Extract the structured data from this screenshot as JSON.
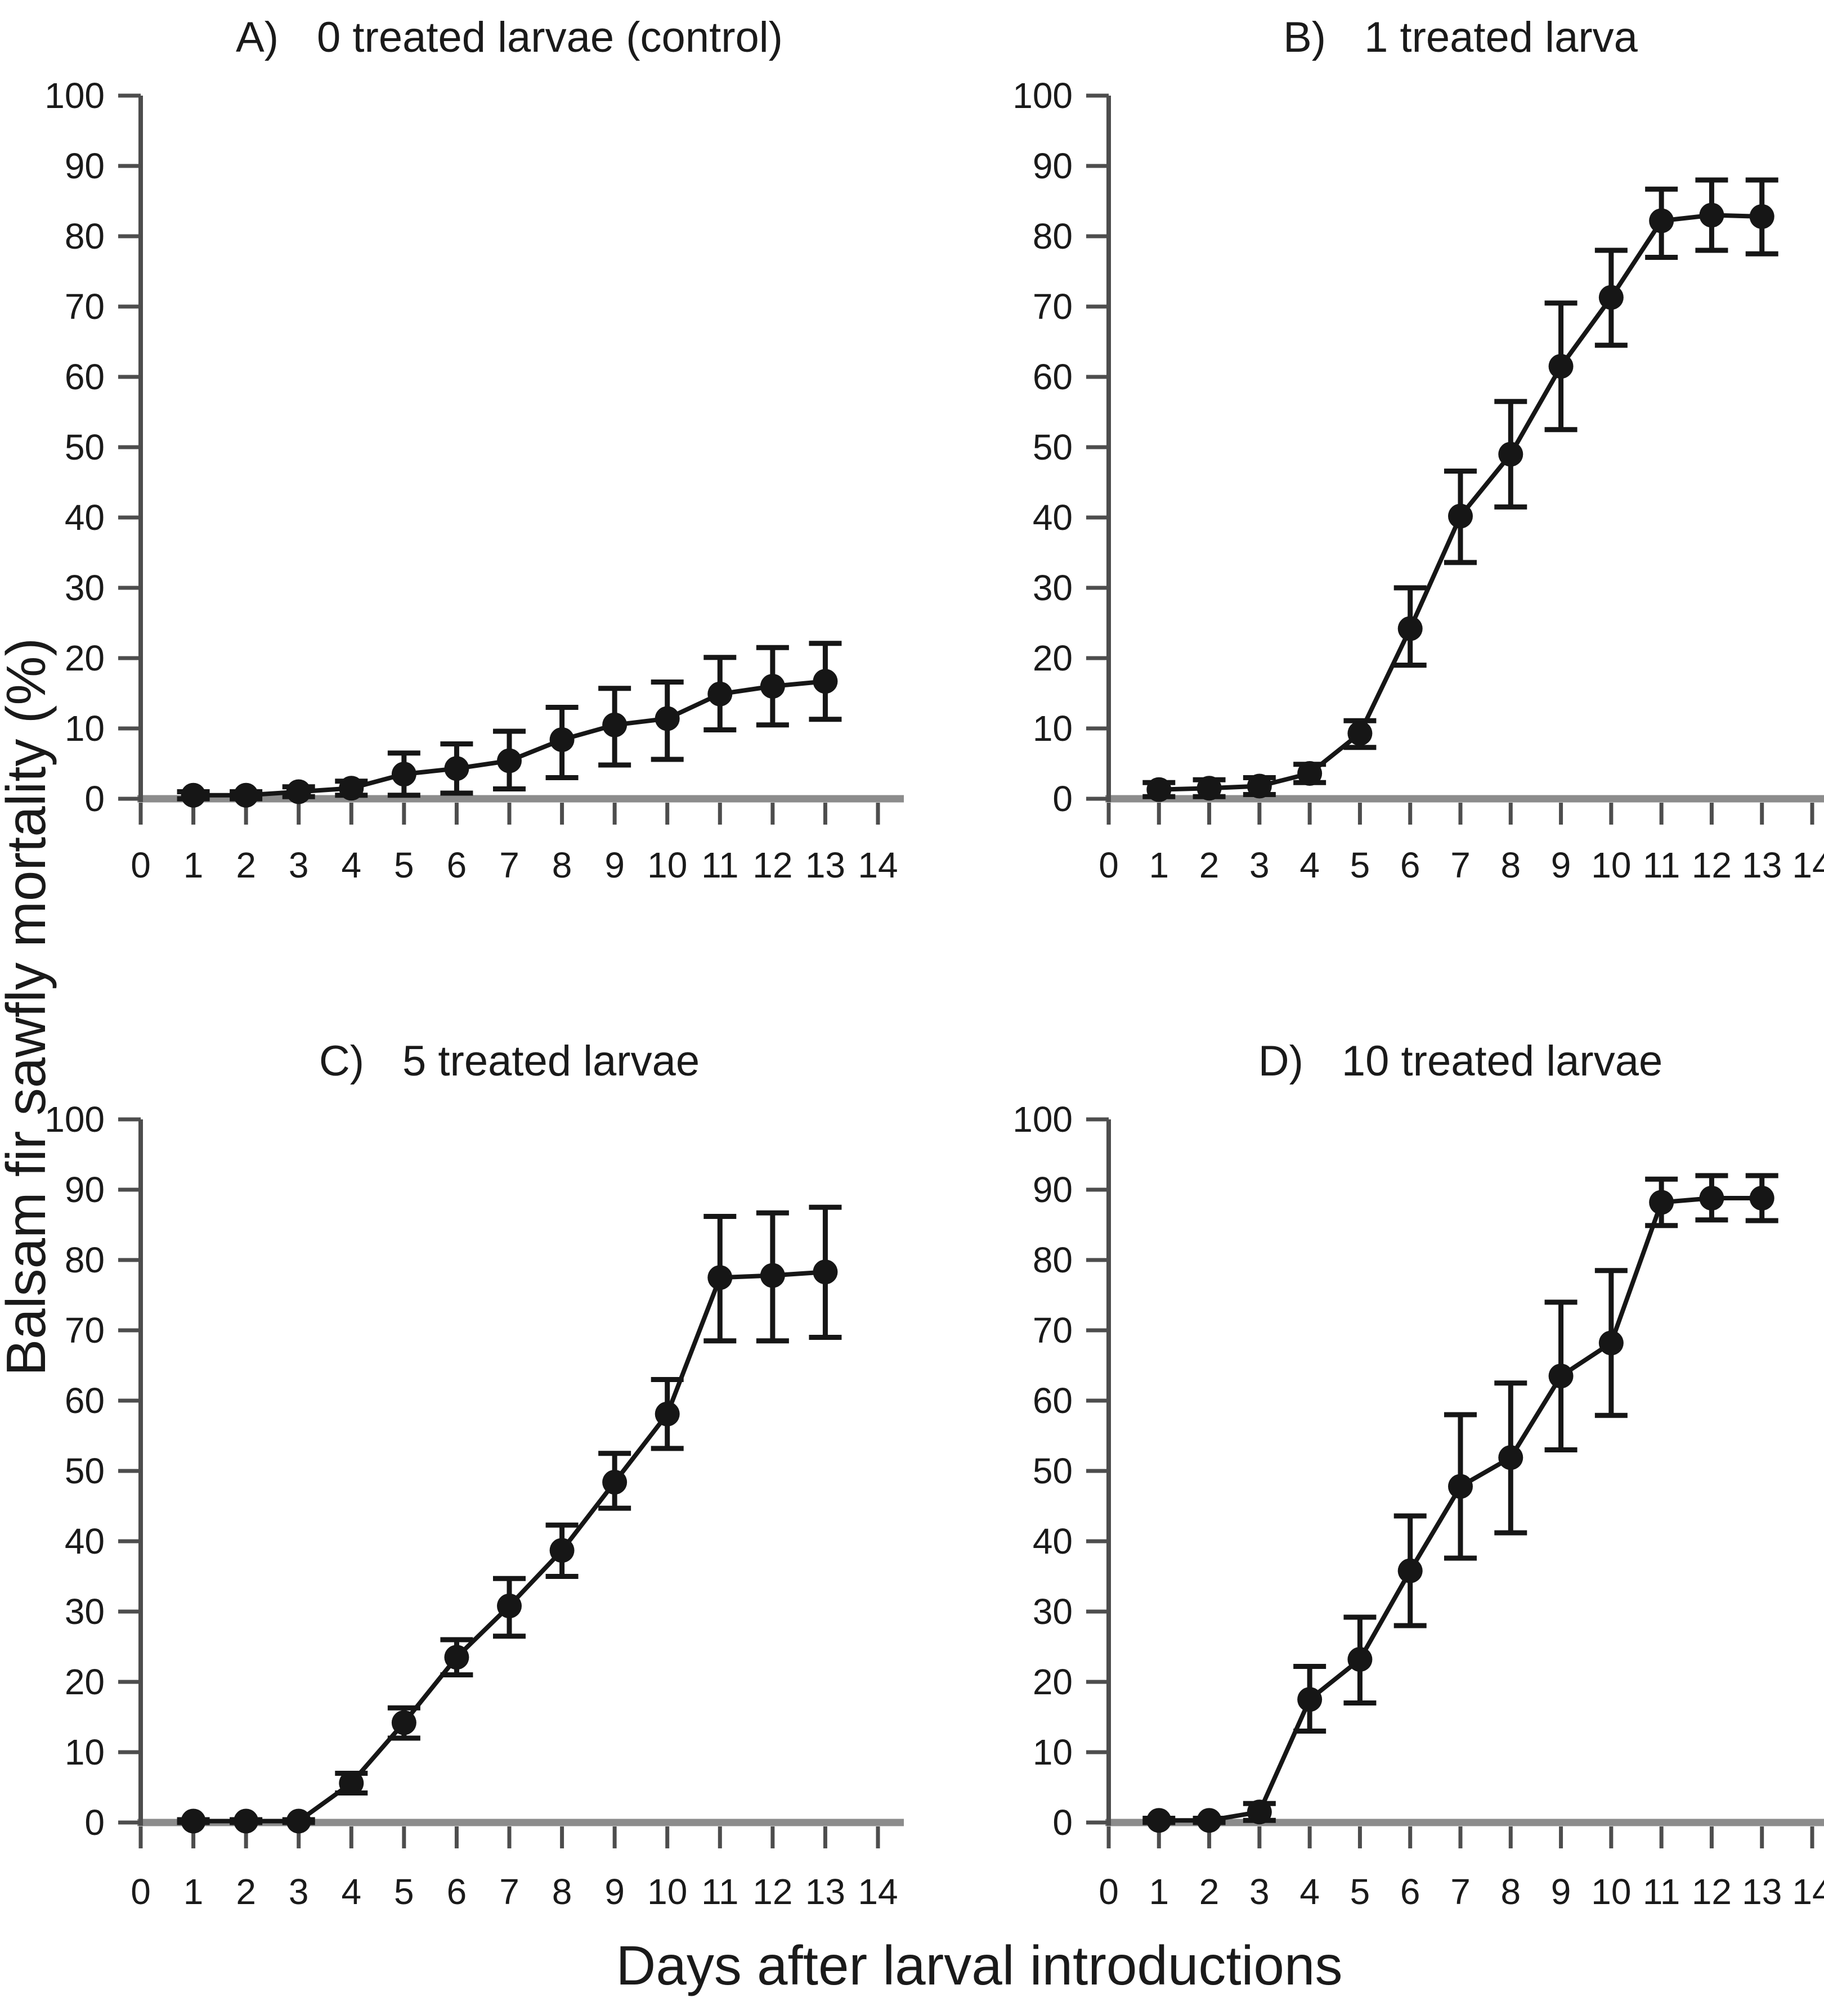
{
  "figure": {
    "xlabel": "Days after larval introductions",
    "ylabel": "Balsam fir sawfly mortality (%)",
    "background_color": "#ffffff",
    "series_color": "#161616",
    "axis_color": "#4d4d4d",
    "baseline_color": "#8c8c8c",
    "text_color": "#1a1a1a",
    "marker": "filled-circle",
    "error_bars": "mean ± error, capped",
    "axes": {
      "xlim": [
        0,
        14
      ],
      "ylim": [
        0,
        100
      ],
      "xticks": [
        0,
        1,
        2,
        3,
        4,
        5,
        6,
        7,
        8,
        9,
        10,
        11,
        12,
        13,
        14
      ],
      "yticks": [
        0,
        10,
        20,
        30,
        40,
        50,
        60,
        70,
        80,
        90,
        100
      ]
    }
  },
  "chart_data": [
    {
      "type": "line",
      "letter": "A)",
      "panel_title": "0 treated larvae (control)",
      "x": [
        1,
        2,
        3,
        4,
        5,
        6,
        7,
        8,
        9,
        10,
        11,
        12,
        13
      ],
      "values": [
        0.5,
        0.5,
        1.0,
        1.5,
        3.5,
        4.3,
        5.4,
        8.4,
        10.5,
        11.4,
        14.9,
        16.0,
        16.7
      ],
      "err_low": [
        0.5,
        0.5,
        0.7,
        1.0,
        3.0,
        3.5,
        4.0,
        5.4,
        5.7,
        5.8,
        5.1,
        5.5,
        5.4
      ],
      "err_high": [
        0.5,
        0.5,
        0.7,
        1.0,
        3.0,
        3.5,
        4.2,
        4.6,
        5.2,
        5.2,
        5.2,
        5.5,
        5.4
      ],
      "xlim": [
        0,
        14
      ],
      "ylim": [
        0,
        100
      ]
    },
    {
      "type": "line",
      "letter": "B)",
      "panel_title": "1 treated larva",
      "x": [
        1,
        2,
        3,
        4,
        5,
        6,
        7,
        8,
        9,
        10,
        11,
        12,
        13
      ],
      "values": [
        1.3,
        1.5,
        1.8,
        3.6,
        9.3,
        24.2,
        40.2,
        49.0,
        61.5,
        71.3,
        82.2,
        83.0,
        82.8
      ],
      "err_low": [
        1.0,
        1.2,
        1.2,
        1.3,
        2.0,
        5.2,
        6.6,
        7.5,
        9.0,
        6.8,
        5.2,
        5.0,
        5.3
      ],
      "err_high": [
        1.0,
        1.2,
        1.2,
        1.3,
        1.8,
        5.8,
        6.4,
        7.5,
        9.0,
        6.7,
        4.5,
        5.0,
        5.2
      ],
      "xlim": [
        0,
        14
      ],
      "ylim": [
        0,
        100
      ]
    },
    {
      "type": "line",
      "letter": "C)",
      "panel_title": "5 treated larvae",
      "x": [
        1,
        2,
        3,
        4,
        5,
        6,
        7,
        8,
        9,
        10,
        11,
        12,
        13
      ],
      "values": [
        0.2,
        0.2,
        0.2,
        5.6,
        14.2,
        23.5,
        30.8,
        38.7,
        48.4,
        58.1,
        77.5,
        77.8,
        78.3
      ],
      "err_low": [
        0.2,
        0.2,
        0.2,
        1.4,
        2.2,
        2.5,
        4.3,
        3.7,
        3.7,
        4.9,
        9.0,
        9.3,
        9.3
      ],
      "err_high": [
        0.2,
        0.2,
        0.2,
        1.4,
        2.1,
        2.5,
        3.9,
        3.6,
        4.1,
        4.9,
        8.7,
        8.9,
        9.2
      ],
      "xlim": [
        0,
        14
      ],
      "ylim": [
        0,
        100
      ]
    },
    {
      "type": "line",
      "letter": "D)",
      "panel_title": "10 treated larvae",
      "x": [
        1,
        2,
        3,
        4,
        5,
        6,
        7,
        8,
        9,
        10,
        11,
        12,
        13
      ],
      "values": [
        0.3,
        0.3,
        1.5,
        17.5,
        23.2,
        35.8,
        47.8,
        51.9,
        63.5,
        68.2,
        88.2,
        88.8,
        88.8
      ],
      "err_low": [
        0.3,
        0.3,
        1.2,
        4.5,
        6.2,
        7.8,
        10.2,
        10.7,
        10.5,
        10.3,
        3.3,
        3.1,
        3.2
      ],
      "err_high": [
        0.3,
        0.3,
        1.2,
        4.7,
        6.0,
        7.8,
        10.2,
        10.6,
        10.5,
        10.3,
        3.3,
        3.2,
        3.2
      ],
      "xlim": [
        0,
        14
      ],
      "ylim": [
        0,
        100
      ]
    }
  ]
}
